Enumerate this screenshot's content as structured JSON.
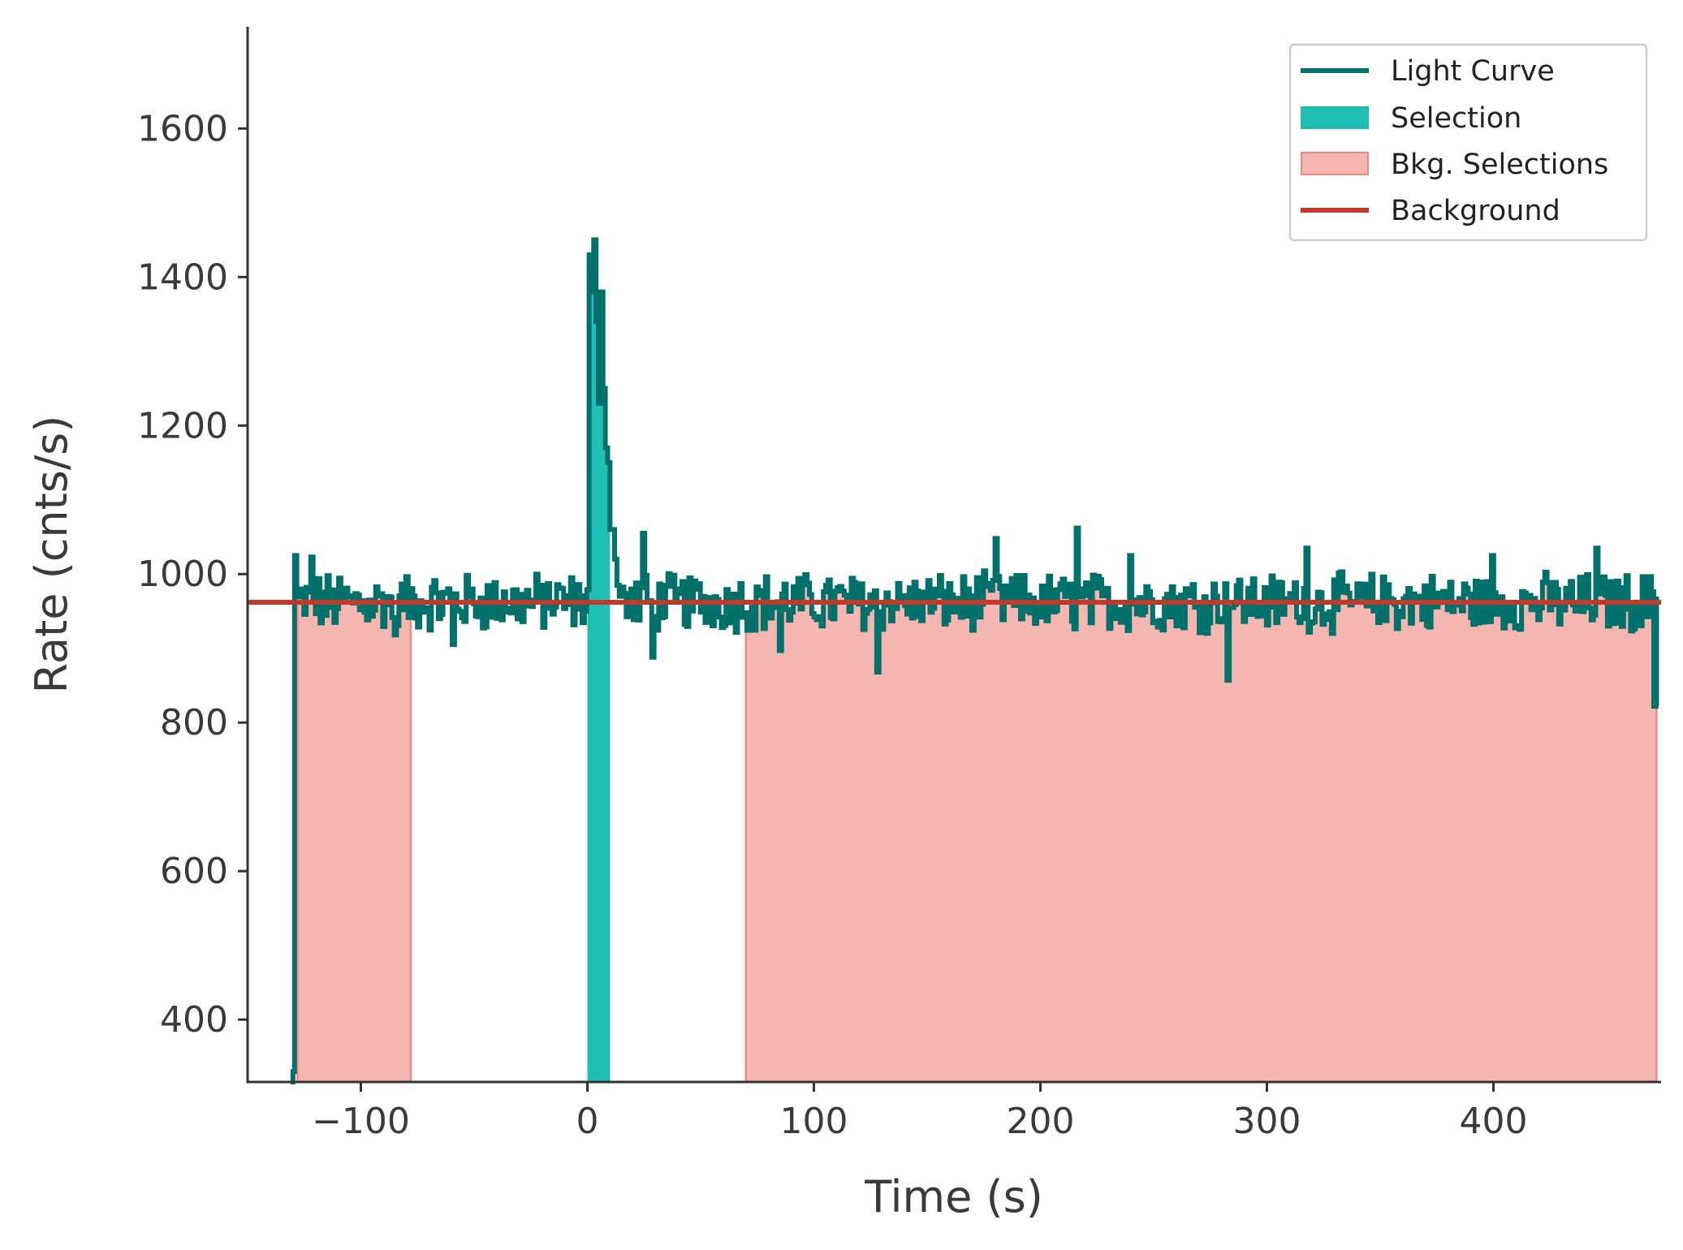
{
  "chart_data": {
    "type": "line",
    "xlabel": "Time (s)",
    "ylabel": "Rate (cnts/s)",
    "xlim": [
      -150,
      474
    ],
    "ylim": [
      316,
      1737
    ],
    "x_ticks": [
      -100,
      0,
      100,
      200,
      300,
      400
    ],
    "x_tick_labels": [
      "−100",
      "0",
      "100",
      "200",
      "300",
      "400"
    ],
    "y_ticks": [
      400,
      600,
      800,
      1000,
      1200,
      1400,
      1600
    ],
    "y_tick_labels": [
      "400",
      "600",
      "800",
      "1000",
      "1200",
      "1400",
      "1600"
    ],
    "grid": false,
    "legend_position": "top-right",
    "legend": [
      "Light Curve",
      "Selection",
      "Bkg. Selections",
      "Background"
    ],
    "colors": {
      "light_curve": "#03716b",
      "selection": "#20bfb6",
      "bkg_fill": "#f4b6b1",
      "bkg_edge": "#ee8a80",
      "background": "#c0392b",
      "axis": "#333333"
    },
    "background_level": 962,
    "selection_interval": [
      0,
      10
    ],
    "bkg_intervals": [
      [
        -128,
        -78
      ],
      [
        70,
        472
      ]
    ],
    "light_curve": {
      "bin_width": 1.024,
      "start": -131,
      "end": 472,
      "lead_in": [
        [
          -131,
          316
        ],
        [
          -130,
          330
        ],
        [
          -129.3,
          1025
        ]
      ],
      "baseline": 962,
      "noise_amplitude": 35,
      "burst_bins": [
        [
          0.0,
          1110
        ],
        [
          1.0,
          1430
        ],
        [
          2.0,
          1380
        ],
        [
          3.0,
          1450
        ],
        [
          4.0,
          1340
        ],
        [
          5.0,
          1230
        ],
        [
          6.0,
          1380
        ],
        [
          7.0,
          1250
        ],
        [
          8.0,
          1170
        ],
        [
          9.0,
          1150
        ],
        [
          10.0,
          1060
        ],
        [
          11.0,
          1060
        ],
        [
          12.0,
          1020
        ],
        [
          13.0,
          985
        ],
        [
          14.0,
          970
        ]
      ],
      "extremes": [
        [
          -122,
          1023
        ],
        [
          -85,
          918
        ],
        [
          -60,
          905
        ],
        [
          24,
          1055
        ],
        [
          28,
          888
        ],
        [
          85,
          897
        ],
        [
          128,
          868
        ],
        [
          180,
          1048
        ],
        [
          216,
          1062
        ],
        [
          239,
          1025
        ],
        [
          282,
          857
        ],
        [
          317,
          1035
        ],
        [
          399,
          1025
        ],
        [
          445,
          1035
        ],
        [
          471,
          822
        ]
      ]
    }
  }
}
